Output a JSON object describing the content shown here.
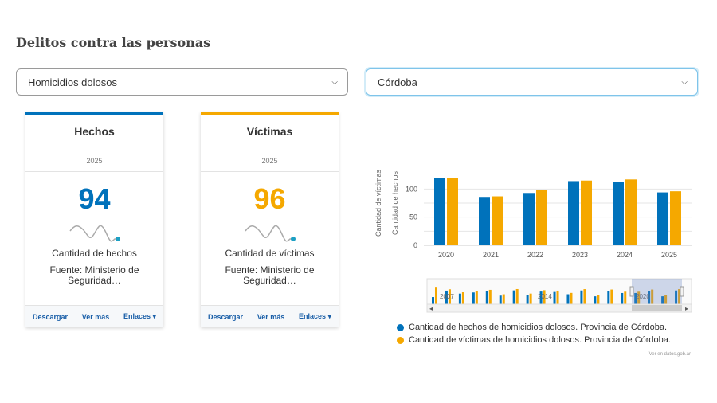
{
  "page": {
    "title": "Delitos contra las personas"
  },
  "filters": {
    "crime_type": {
      "selected": "Homicidios dolosos"
    },
    "province": {
      "selected": "Córdoba"
    }
  },
  "cards": [
    {
      "title": "Hechos",
      "year": "2025",
      "value": "94",
      "label": "Cantidad de hechos",
      "source": "Fuente: Ministerio de Seguridad…",
      "accent_color": "#0072bb",
      "actions": {
        "download": "Descargar",
        "more": "Ver más",
        "links": "Enlaces ▾"
      }
    },
    {
      "title": "Víctimas",
      "year": "2025",
      "value": "96",
      "label": "Cantidad de víctimas",
      "source": "Fuente: Ministerio de Seguridad…",
      "accent_color": "#f5a800",
      "actions": {
        "download": "Descargar",
        "more": "Ver más",
        "links": "Enlaces ▾"
      }
    }
  ],
  "chart_data": {
    "type": "bar",
    "categories": [
      "2020",
      "2021",
      "2022",
      "2023",
      "2024",
      "2025"
    ],
    "series": [
      {
        "name": "Cantidad de hechos de homicidios dolosos. Provincia de Córdoba.",
        "color": "#0072bb",
        "values": [
          119,
          86,
          93,
          114,
          112,
          94
        ]
      },
      {
        "name": "Cantidad de víctimas de homicidios dolosos. Provincia de Córdoba.",
        "color": "#f5a800",
        "values": [
          120,
          87,
          98,
          115,
          117,
          96
        ]
      }
    ],
    "ylabel": "Cantidad de víctimas",
    "ylabel2": "Cantidad de hechos",
    "y_ticks": [
      "0",
      "25",
      "50",
      "75",
      "100"
    ],
    "ylim": [
      0,
      150
    ],
    "grid": true,
    "legend_position": "bottom",
    "navigator": {
      "labels": [
        "2007",
        "2014",
        "2020"
      ]
    }
  },
  "footer": {
    "credit": "Ver en datos.gob.ar"
  }
}
